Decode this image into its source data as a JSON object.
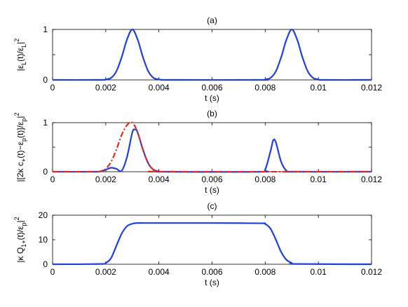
{
  "figure": {
    "panels": [
      "(a)",
      "(b)",
      "(c)"
    ]
  },
  "chart_data": [
    {
      "type": "line",
      "title": "(a)",
      "xlabel": "t (s)",
      "ylabel": "|ε_L(t)/ε_L|²",
      "ylabel_parts": {
        "pre": "|ε",
        "s1": "L",
        "mid": "(t)/ε",
        "s2": "L",
        "post": "|",
        "sup": "2"
      },
      "xlim": [
        0,
        0.012
      ],
      "ylim": [
        0,
        1
      ],
      "xticks": [
        "0",
        "0.002",
        "0.004",
        "0.006",
        "0.008",
        "0.01",
        "0.012"
      ],
      "yticks": [
        "0",
        "0.5",
        "1"
      ],
      "grid": false,
      "series": [
        {
          "color": "#1f3fe0",
          "style": "solid",
          "x": [
            0,
            0.0018,
            0.002,
            0.0022,
            0.0024,
            0.0026,
            0.0028,
            0.003,
            0.0032,
            0.0034,
            0.0036,
            0.0038,
            0.004,
            0.0042,
            0.0044,
            0.0078,
            0.008,
            0.0082,
            0.0084,
            0.0086,
            0.0088,
            0.009,
            0.0092,
            0.0094,
            0.0096,
            0.0098,
            0.01,
            0.0102,
            0.012
          ],
          "y": [
            0,
            0,
            0.01,
            0.04,
            0.17,
            0.45,
            0.8,
            1.0,
            0.8,
            0.45,
            0.17,
            0.04,
            0.01,
            0,
            0,
            0,
            0.01,
            0.04,
            0.17,
            0.45,
            0.8,
            1.0,
            0.8,
            0.45,
            0.17,
            0.04,
            0.01,
            0,
            0
          ]
        }
      ]
    },
    {
      "type": "line",
      "title": "(b)",
      "xlabel": "t (s)",
      "ylabel": "|[2κ c₊(t)−ε_p(t)]/ε_p|²",
      "ylabel_parts": {
        "pre": "|[2κ c",
        "s1": "+",
        "mid": "(t)−ε",
        "s2": "p",
        "mid2": "(t)]/ε",
        "s3": "p",
        "post": "|",
        "sup": "2"
      },
      "xlim": [
        0,
        0.012
      ],
      "ylim": [
        0,
        1
      ],
      "xticks": [
        "0",
        "0.002",
        "0.004",
        "0.006",
        "0.008",
        "0.01",
        "0.012"
      ],
      "yticks": [
        "0",
        "0.5",
        "1"
      ],
      "grid": false,
      "series": [
        {
          "color": "#1f3fe0",
          "style": "solid",
          "x": [
            0,
            0.0016,
            0.0018,
            0.002,
            0.0022,
            0.0024,
            0.0026,
            0.0028,
            0.003,
            0.0031,
            0.0032,
            0.0034,
            0.0036,
            0.0038,
            0.004,
            0.0042,
            0.0078,
            0.008,
            0.0082,
            0.0083,
            0.0084,
            0.0086,
            0.0088,
            0.009,
            0.012
          ],
          "y": [
            0,
            0,
            0.01,
            0.04,
            0.08,
            0.06,
            0.02,
            0.3,
            0.8,
            0.86,
            0.8,
            0.45,
            0.17,
            0.04,
            0.01,
            0,
            0,
            0.05,
            0.42,
            0.64,
            0.6,
            0.2,
            0.02,
            0,
            0
          ]
        },
        {
          "color": "#e8281e",
          "style": "dashdot",
          "x": [
            0,
            0.0016,
            0.0018,
            0.002,
            0.0022,
            0.0024,
            0.0026,
            0.0028,
            0.003,
            0.0032,
            0.0034,
            0.0036,
            0.0038,
            0.004,
            0.0042,
            0.012
          ],
          "y": [
            0,
            0,
            0.01,
            0.06,
            0.2,
            0.45,
            0.75,
            0.95,
            1.0,
            0.8,
            0.45,
            0.17,
            0.04,
            0.01,
            0,
            0
          ]
        }
      ]
    },
    {
      "type": "line",
      "title": "(c)",
      "xlabel": "t (s)",
      "ylabel": "|κ Q₁₊(t)/ε_p|²",
      "ylabel_parts": {
        "pre": "|κ Q",
        "s1": "1+",
        "mid": "(t)/ε",
        "s2": "p",
        "post": "|",
        "sup": "2"
      },
      "xlim": [
        0,
        0.012
      ],
      "ylim": [
        0,
        20
      ],
      "xticks": [
        "0",
        "0.002",
        "0.004",
        "0.006",
        "0.008",
        "0.01",
        "0.012"
      ],
      "yticks": [
        "0",
        "10",
        "20"
      ],
      "grid": false,
      "series": [
        {
          "color": "#1f3fe0",
          "style": "solid",
          "x": [
            0,
            0.0018,
            0.002,
            0.0022,
            0.0024,
            0.0026,
            0.0028,
            0.003,
            0.0032,
            0.0034,
            0.004,
            0.006,
            0.0078,
            0.008,
            0.0082,
            0.0084,
            0.0086,
            0.0088,
            0.009,
            0.0092,
            0.012
          ],
          "y": [
            0,
            0.1,
            0.5,
            2.5,
            7.5,
            12.5,
            15.5,
            16.5,
            16.8,
            16.8,
            16.8,
            16.8,
            16.7,
            16.4,
            14.5,
            10.0,
            5.0,
            1.8,
            0.5,
            0.1,
            0
          ]
        }
      ]
    }
  ]
}
